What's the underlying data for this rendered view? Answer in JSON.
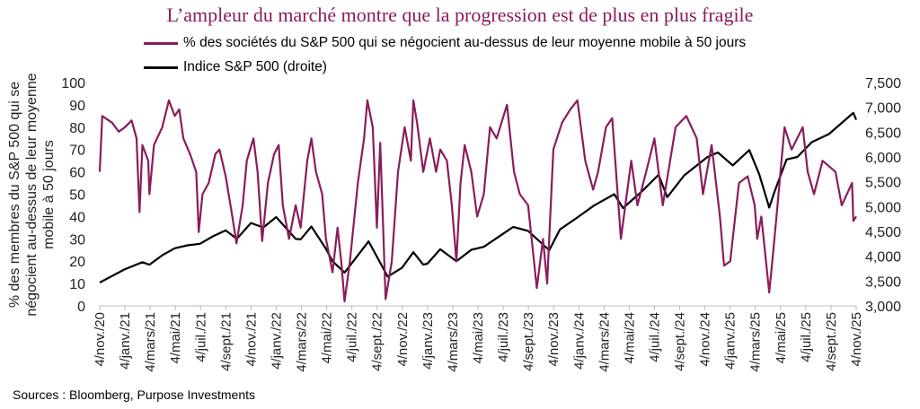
{
  "title": "L’ampleur du marché montre que la progression est de plus en plus fragile",
  "source": "Sources : Bloomberg, Purpose Investments",
  "chart_data": {
    "type": "line",
    "title": "L’ampleur du marché montre que la progression est de plus en plus fragile",
    "legend_placement": "top",
    "grid": false,
    "xlabel": "",
    "ylabel": "% des membres du S&P 500 qui se négocient au-dessus de leur moyenne mobile à 50 jours",
    "ylabel_lines": [
      "% des membres du S&P 500 qui se",
      "négocient au-dessus de leur moyenne",
      "mobile à 50 jours"
    ],
    "xlim": [
      "2020-11-04",
      "2025-11-04"
    ],
    "ylim": [
      0,
      100
    ],
    "y2lim": [
      3000,
      7500
    ],
    "x_tick_labels": [
      "4/nov./20",
      "4/janv./21",
      "4/mars/21",
      "4/mai/21",
      "4/juil./21",
      "4/sept./21",
      "4/nov./21",
      "4/janv./22",
      "4/mars/22",
      "4/mai/22",
      "4/juil./22",
      "4/sept./22",
      "4/nov./22",
      "4/janv./23",
      "4/mars/23",
      "4/mai/23",
      "4/juil./23",
      "4/sept./23",
      "4/nov./23",
      "4/janv./24",
      "4/mars/24",
      "4/mai/24",
      "4/juil./24",
      "4/sept./24",
      "4/nov./24",
      "4/janv./25",
      "4/mars/25",
      "4/mai/25",
      "4/juil./25",
      "4/sept./25",
      "4/nov./25"
    ],
    "y_ticks": [
      "0",
      "10",
      "20",
      "30",
      "40",
      "50",
      "60",
      "70",
      "80",
      "90",
      "100"
    ],
    "y2_ticks": [
      "3,000",
      "3,500",
      "4,000",
      "4,500",
      "5,000",
      "5,500",
      "6,000",
      "6,500",
      "7,000",
      "7,500"
    ],
    "series": [
      {
        "name": "% des sociétés du S&P 500 qui se négocient au-dessus de leur moyenne mobile à 50 jours",
        "axis": "left",
        "color": "#8a1c5d",
        "points": [
          [
            "2020-11-04",
            60
          ],
          [
            "2020-11-10",
            85
          ],
          [
            "2020-12-04",
            82
          ],
          [
            "2020-12-20",
            78
          ],
          [
            "2021-01-04",
            80
          ],
          [
            "2021-01-20",
            83
          ],
          [
            "2021-02-01",
            75
          ],
          [
            "2021-02-08",
            42
          ],
          [
            "2021-02-15",
            72
          ],
          [
            "2021-03-01",
            65
          ],
          [
            "2021-03-04",
            50
          ],
          [
            "2021-03-15",
            72
          ],
          [
            "2021-04-04",
            80
          ],
          [
            "2021-04-20",
            92
          ],
          [
            "2021-05-04",
            85
          ],
          [
            "2021-05-15",
            88
          ],
          [
            "2021-05-25",
            75
          ],
          [
            "2021-06-10",
            68
          ],
          [
            "2021-06-25",
            60
          ],
          [
            "2021-07-01",
            33
          ],
          [
            "2021-07-10",
            50
          ],
          [
            "2021-07-25",
            55
          ],
          [
            "2021-08-10",
            68
          ],
          [
            "2021-08-20",
            70
          ],
          [
            "2021-09-04",
            58
          ],
          [
            "2021-09-20",
            40
          ],
          [
            "2021-09-30",
            28
          ],
          [
            "2021-10-15",
            45
          ],
          [
            "2021-10-25",
            65
          ],
          [
            "2021-11-10",
            75
          ],
          [
            "2021-11-20",
            60
          ],
          [
            "2021-12-01",
            29
          ],
          [
            "2021-12-15",
            55
          ],
          [
            "2021-12-30",
            68
          ],
          [
            "2022-01-10",
            72
          ],
          [
            "2022-01-20",
            45
          ],
          [
            "2022-02-04",
            30
          ],
          [
            "2022-02-20",
            45
          ],
          [
            "2022-03-04",
            35
          ],
          [
            "2022-03-20",
            65
          ],
          [
            "2022-03-30",
            75
          ],
          [
            "2022-04-10",
            60
          ],
          [
            "2022-04-25",
            50
          ],
          [
            "2022-05-04",
            30
          ],
          [
            "2022-05-20",
            15
          ],
          [
            "2022-06-01",
            35
          ],
          [
            "2022-06-10",
            20
          ],
          [
            "2022-06-18",
            2
          ],
          [
            "2022-07-01",
            20
          ],
          [
            "2022-07-20",
            55
          ],
          [
            "2022-08-04",
            75
          ],
          [
            "2022-08-12",
            92
          ],
          [
            "2022-08-25",
            80
          ],
          [
            "2022-09-04",
            35
          ],
          [
            "2022-09-12",
            73
          ],
          [
            "2022-09-25",
            3
          ],
          [
            "2022-10-10",
            20
          ],
          [
            "2022-10-25",
            60
          ],
          [
            "2022-11-10",
            80
          ],
          [
            "2022-11-25",
            65
          ],
          [
            "2022-12-01",
            92
          ],
          [
            "2022-12-10",
            82
          ],
          [
            "2022-12-25",
            60
          ],
          [
            "2023-01-10",
            75
          ],
          [
            "2023-01-25",
            60
          ],
          [
            "2023-02-04",
            70
          ],
          [
            "2023-02-20",
            65
          ],
          [
            "2023-03-04",
            45
          ],
          [
            "2023-03-15",
            20
          ],
          [
            "2023-03-25",
            55
          ],
          [
            "2023-04-04",
            72
          ],
          [
            "2023-04-20",
            60
          ],
          [
            "2023-05-04",
            40
          ],
          [
            "2023-05-20",
            50
          ],
          [
            "2023-06-04",
            80
          ],
          [
            "2023-06-20",
            75
          ],
          [
            "2023-07-15",
            90
          ],
          [
            "2023-08-01",
            60
          ],
          [
            "2023-08-15",
            50
          ],
          [
            "2023-09-04",
            45
          ],
          [
            "2023-09-25",
            8
          ],
          [
            "2023-10-10",
            30
          ],
          [
            "2023-10-20",
            10
          ],
          [
            "2023-11-04",
            70
          ],
          [
            "2023-11-25",
            82
          ],
          [
            "2023-12-15",
            88
          ],
          [
            "2024-01-01",
            92
          ],
          [
            "2024-01-20",
            65
          ],
          [
            "2024-02-08",
            52
          ],
          [
            "2024-02-20",
            60
          ],
          [
            "2024-03-10",
            80
          ],
          [
            "2024-03-25",
            84
          ],
          [
            "2024-04-15",
            30
          ],
          [
            "2024-05-10",
            65
          ],
          [
            "2024-05-25",
            45
          ],
          [
            "2024-06-15",
            60
          ],
          [
            "2024-07-05",
            75
          ],
          [
            "2024-07-25",
            45
          ],
          [
            "2024-08-25",
            80
          ],
          [
            "2024-09-20",
            85
          ],
          [
            "2024-10-15",
            75
          ],
          [
            "2024-10-30",
            50
          ],
          [
            "2024-11-20",
            72
          ],
          [
            "2024-12-10",
            40
          ],
          [
            "2024-12-20",
            18
          ],
          [
            "2025-01-04",
            20
          ],
          [
            "2025-01-25",
            55
          ],
          [
            "2025-02-15",
            58
          ],
          [
            "2025-03-04",
            45
          ],
          [
            "2025-03-10",
            30
          ],
          [
            "2025-03-20",
            40
          ],
          [
            "2025-04-08",
            6
          ],
          [
            "2025-04-18",
            25
          ],
          [
            "2025-04-28",
            45
          ],
          [
            "2025-05-15",
            80
          ],
          [
            "2025-06-01",
            70
          ],
          [
            "2025-06-28",
            80
          ],
          [
            "2025-07-10",
            60
          ],
          [
            "2025-07-25",
            50
          ],
          [
            "2025-08-15",
            65
          ],
          [
            "2025-09-15",
            60
          ],
          [
            "2025-09-30",
            45
          ],
          [
            "2025-10-25",
            55
          ],
          [
            "2025-10-28",
            38
          ],
          [
            "2025-11-04",
            40
          ]
        ]
      },
      {
        "name": "Indice S&P 500 (droite)",
        "axis": "right",
        "color": "#000000",
        "points": [
          [
            "2020-11-04",
            3470
          ],
          [
            "2020-12-15",
            3650
          ],
          [
            "2021-01-04",
            3740
          ],
          [
            "2021-02-15",
            3880
          ],
          [
            "2021-03-04",
            3830
          ],
          [
            "2021-04-04",
            4020
          ],
          [
            "2021-05-04",
            4160
          ],
          [
            "2021-06-04",
            4220
          ],
          [
            "2021-07-04",
            4250
          ],
          [
            "2021-08-04",
            4400
          ],
          [
            "2021-09-04",
            4520
          ],
          [
            "2021-10-01",
            4350
          ],
          [
            "2021-11-04",
            4670
          ],
          [
            "2021-12-04",
            4580
          ],
          [
            "2022-01-04",
            4790
          ],
          [
            "2022-02-20",
            4350
          ],
          [
            "2022-03-04",
            4340
          ],
          [
            "2022-03-30",
            4600
          ],
          [
            "2022-05-04",
            4150
          ],
          [
            "2022-05-20",
            3900
          ],
          [
            "2022-06-18",
            3670
          ],
          [
            "2022-08-15",
            4300
          ],
          [
            "2022-09-30",
            3590
          ],
          [
            "2022-11-04",
            3770
          ],
          [
            "2022-12-01",
            4080
          ],
          [
            "2022-12-25",
            3830
          ],
          [
            "2023-01-04",
            3850
          ],
          [
            "2023-02-04",
            4140
          ],
          [
            "2023-03-15",
            3900
          ],
          [
            "2023-04-20",
            4130
          ],
          [
            "2023-05-20",
            4190
          ],
          [
            "2023-07-30",
            4590
          ],
          [
            "2023-09-04",
            4510
          ],
          [
            "2023-10-25",
            4120
          ],
          [
            "2023-11-20",
            4540
          ],
          [
            "2023-12-30",
            4770
          ],
          [
            "2024-02-10",
            5020
          ],
          [
            "2024-03-30",
            5250
          ],
          [
            "2024-04-20",
            4970
          ],
          [
            "2024-06-04",
            5300
          ],
          [
            "2024-07-15",
            5640
          ],
          [
            "2024-08-05",
            5190
          ],
          [
            "2024-09-15",
            5630
          ],
          [
            "2024-11-10",
            6000
          ],
          [
            "2024-12-05",
            6090
          ],
          [
            "2025-01-10",
            5830
          ],
          [
            "2025-02-19",
            6140
          ],
          [
            "2025-03-15",
            5650
          ],
          [
            "2025-04-08",
            4980
          ],
          [
            "2025-04-20",
            5280
          ],
          [
            "2025-05-20",
            5950
          ],
          [
            "2025-06-15",
            6000
          ],
          [
            "2025-07-20",
            6300
          ],
          [
            "2025-08-30",
            6460
          ],
          [
            "2025-10-28",
            6890
          ],
          [
            "2025-11-04",
            6750
          ]
        ]
      }
    ]
  }
}
